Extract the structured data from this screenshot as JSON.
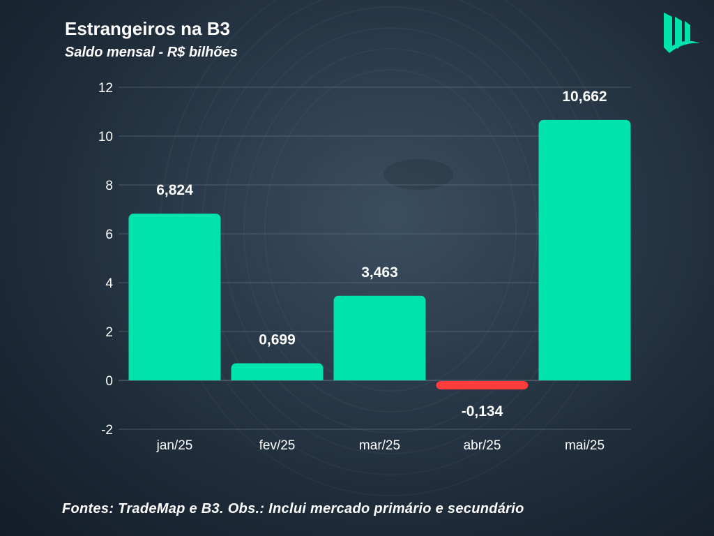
{
  "header": {
    "title": "Estrangeiros na B3",
    "subtitle": "Saldo mensal - R$ bilhões"
  },
  "footer": {
    "text": "Fontes: TradeMap e B3. Obs.: Inclui mercado primário e secundário"
  },
  "logo": {
    "icon": "brand-logo-icon",
    "color": "#00e3ad"
  },
  "colors": {
    "positive": "#00e3ad",
    "negative": "#ff3b3b",
    "grid": "#6e7c88",
    "text": "#ffffff"
  },
  "chart_data": {
    "type": "bar",
    "title": "Estrangeiros na B3",
    "subtitle": "Saldo mensal - R$ bilhões",
    "categories": [
      "jan/25",
      "fev/25",
      "mar/25",
      "abr/25",
      "mai/25"
    ],
    "values": [
      6.824,
      0.699,
      3.463,
      -0.134,
      10.662
    ],
    "value_labels": [
      "6,824",
      "0,699",
      "3,463",
      "-0,134",
      "10,662"
    ],
    "ylim": [
      -2,
      12
    ],
    "yticks": [
      -2,
      0,
      2,
      4,
      6,
      8,
      10,
      12
    ],
    "grid": true,
    "legend": "none",
    "xlabel": "",
    "ylabel": ""
  }
}
